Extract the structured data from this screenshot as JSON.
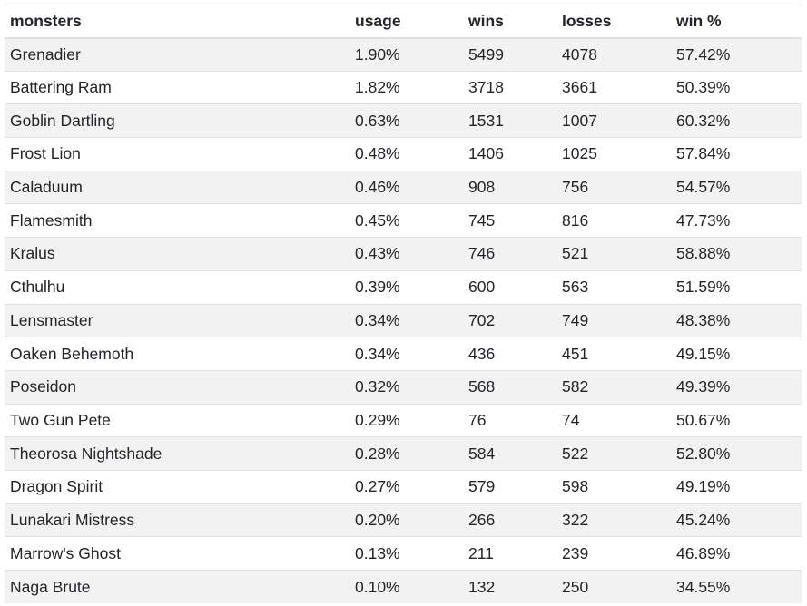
{
  "table": {
    "headers": [
      "monsters",
      "usage",
      "wins",
      "losses",
      "win %"
    ],
    "rows": [
      [
        "Grenadier",
        "1.90%",
        "5499",
        "4078",
        "57.42%"
      ],
      [
        "Battering Ram",
        "1.82%",
        "3718",
        "3661",
        "50.39%"
      ],
      [
        "Goblin Dartling",
        "0.63%",
        "1531",
        "1007",
        "60.32%"
      ],
      [
        "Frost Lion",
        "0.48%",
        "1406",
        "1025",
        "57.84%"
      ],
      [
        "Caladuum",
        "0.46%",
        "908",
        "756",
        "54.57%"
      ],
      [
        "Flamesmith",
        "0.45%",
        "745",
        "816",
        "47.73%"
      ],
      [
        "Kralus",
        "0.43%",
        "746",
        "521",
        "58.88%"
      ],
      [
        "Cthulhu",
        "0.39%",
        "600",
        "563",
        "51.59%"
      ],
      [
        "Lensmaster",
        "0.34%",
        "702",
        "749",
        "48.38%"
      ],
      [
        "Oaken Behemoth",
        "0.34%",
        "436",
        "451",
        "49.15%"
      ],
      [
        "Poseidon",
        "0.32%",
        "568",
        "582",
        "49.39%"
      ],
      [
        "Two Gun Pete",
        "0.29%",
        "76",
        "74",
        "50.67%"
      ],
      [
        "Theorosa Nightshade",
        "0.28%",
        "584",
        "522",
        "52.80%"
      ],
      [
        "Dragon Spirit",
        "0.27%",
        "579",
        "598",
        "49.19%"
      ],
      [
        "Lunakari Mistress",
        "0.20%",
        "266",
        "322",
        "45.24%"
      ],
      [
        "Marrow's Ghost",
        "0.13%",
        "211",
        "239",
        "46.89%"
      ],
      [
        "Naga Brute",
        "0.10%",
        "132",
        "250",
        "34.55%"
      ]
    ]
  }
}
